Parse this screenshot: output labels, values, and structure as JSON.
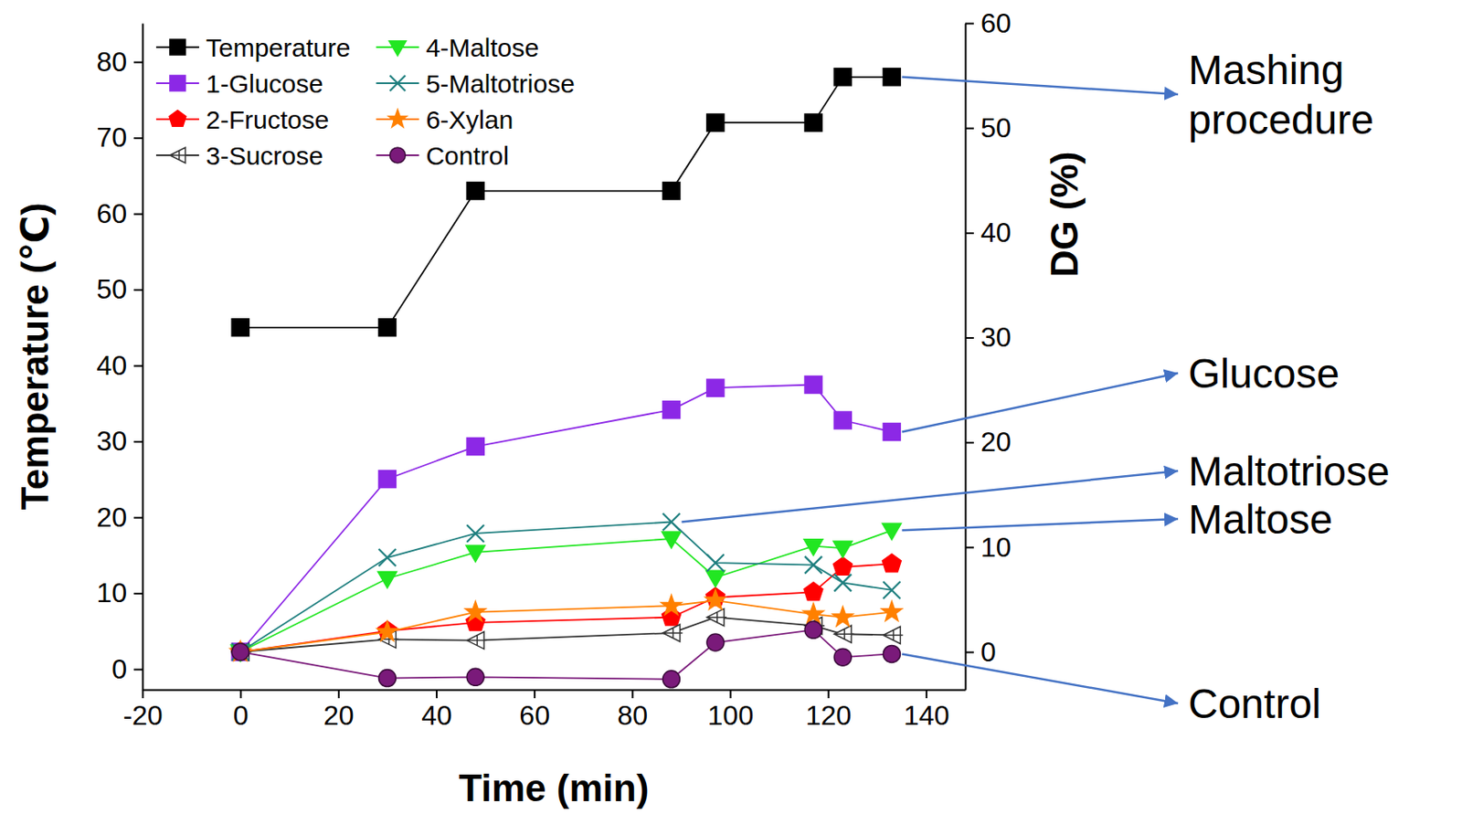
{
  "chart_data": {
    "type": "line",
    "x_label": "Time (min)",
    "y_label": "Temperature (℃)",
    "y2_label": "DG (%)",
    "x": [
      0,
      30,
      48,
      88,
      97,
      117,
      123,
      133
    ],
    "xlim": [
      -20,
      148
    ],
    "xticks": [
      -20,
      0,
      20,
      40,
      60,
      80,
      100,
      120,
      140
    ],
    "ylim": [
      -2.7,
      85.1
    ],
    "yticks": [
      0,
      10,
      20,
      30,
      40,
      50,
      60,
      70,
      80
    ],
    "y2lim": [
      -3.6,
      60
    ],
    "y2ticks": [
      0,
      10,
      20,
      30,
      40,
      50,
      60
    ],
    "legend": "upper left",
    "series": [
      {
        "name": "Temperature",
        "color": "#000000",
        "marker": "square",
        "values": [
          45,
          45,
          63,
          63,
          72,
          72,
          78,
          78
        ]
      },
      {
        "name": "1-Glucose",
        "color": "#8c28e6",
        "marker": "square",
        "axis": "y2",
        "values": [
          0,
          16.5,
          19.6,
          23.1,
          25.2,
          25.5,
          22.1,
          21.0
        ]
      },
      {
        "name": "2-Fructose",
        "color": "#ff0000",
        "marker": "pentagon",
        "axis": "y2",
        "values": [
          0,
          2.0,
          2.8,
          3.3,
          5.2,
          5.7,
          8.1,
          8.4
        ]
      },
      {
        "name": "3-Sucrose",
        "color": "#333333",
        "marker": "open-triangle-left",
        "axis": "y2",
        "values": [
          0,
          1.2,
          1.1,
          1.8,
          3.3,
          2.5,
          1.7,
          1.6
        ]
      },
      {
        "name": "4-Maltose",
        "color": "#22e622",
        "marker": "triangle-down",
        "axis": "y2",
        "values": [
          0,
          7.0,
          9.5,
          10.8,
          7.1,
          10.1,
          9.9,
          11.6
        ]
      },
      {
        "name": "5-Maltotriose",
        "color": "#1f7f7f",
        "marker": "x",
        "axis": "y2",
        "values": [
          0,
          9.0,
          11.3,
          12.4,
          8.5,
          8.3,
          6.6,
          5.9
        ]
      },
      {
        "name": "6-Xylan",
        "color": "#ff8000",
        "marker": "star",
        "axis": "y2",
        "values": [
          0,
          1.9,
          3.8,
          4.4,
          4.9,
          3.6,
          3.3,
          3.8
        ]
      },
      {
        "name": "Control",
        "color": "#7a1a7a",
        "marker": "circle",
        "axis": "y2",
        "values": [
          0,
          -2.5,
          -2.4,
          -2.6,
          0.9,
          2.1,
          -0.5,
          -0.2
        ]
      }
    ],
    "annotations": [
      "Mashing procedure",
      "Glucose",
      "Maltotriose",
      "Maltose",
      "Control"
    ]
  }
}
